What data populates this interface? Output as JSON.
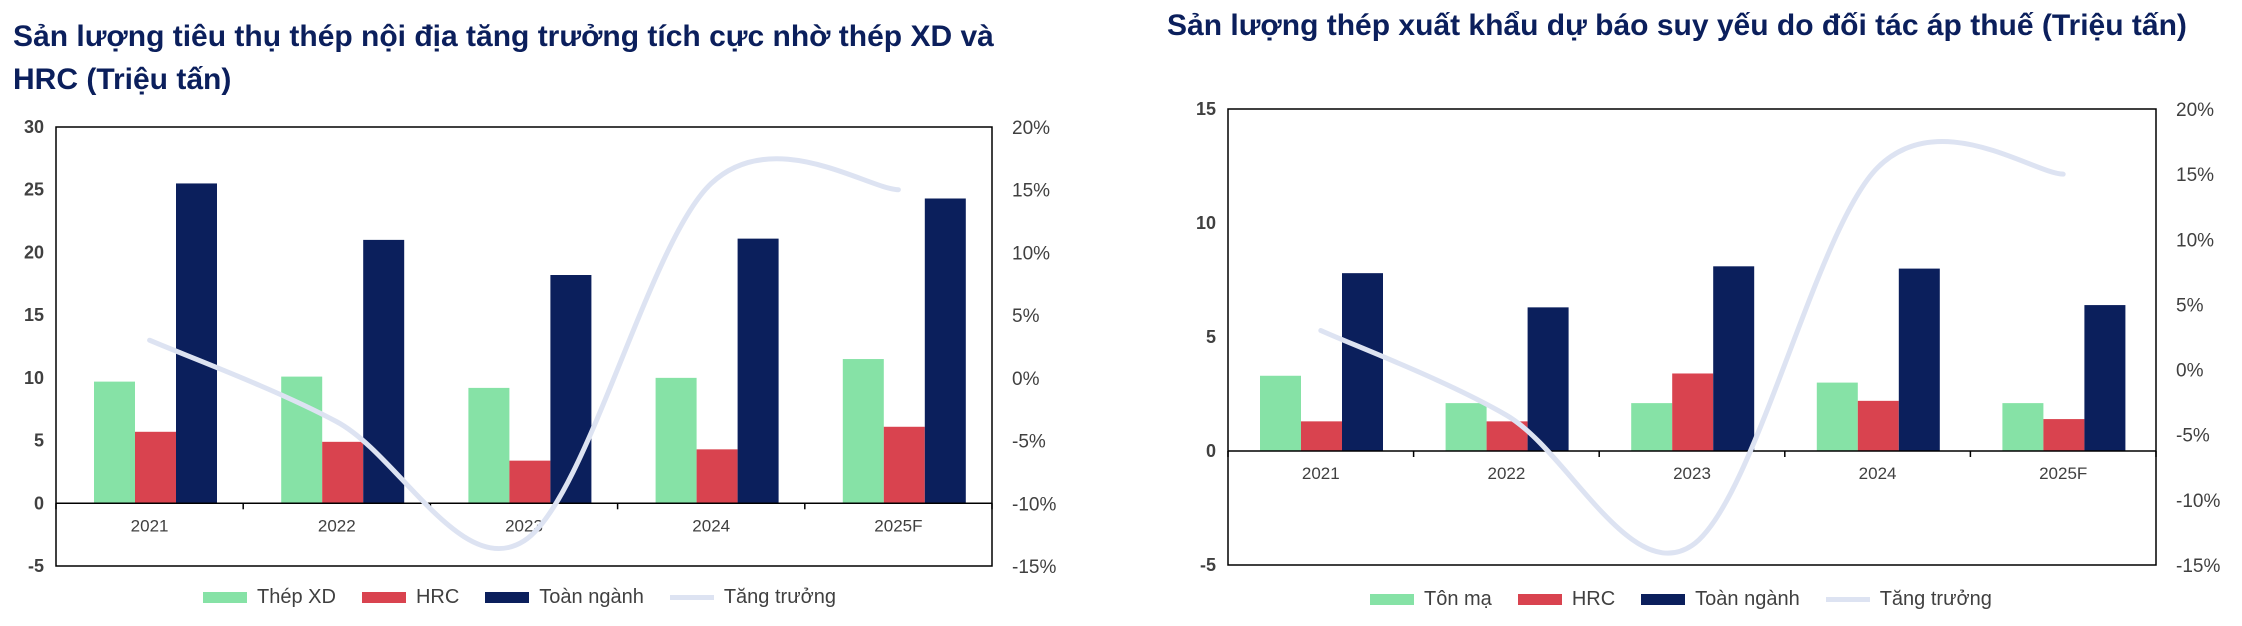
{
  "chart_data": [
    {
      "type": "bar",
      "title": "Sản lượng tiêu thụ thép nội địa tăng trưởng tích cực nhờ thép XD và HRC (Triệu tấn)",
      "categories": [
        "2021",
        "2022",
        "2023",
        "2024",
        "2025F"
      ],
      "series": [
        {
          "name": "Thép XD",
          "type": "bar",
          "axis": "left",
          "color": "#86e2a6",
          "values": [
            9.7,
            10.1,
            9.2,
            10.0,
            11.5
          ]
        },
        {
          "name": "HRC",
          "type": "bar",
          "axis": "left",
          "color": "#d9434f",
          "values": [
            5.7,
            4.9,
            3.4,
            4.3,
            6.1
          ]
        },
        {
          "name": "Toàn ngành",
          "type": "bar",
          "axis": "left",
          "color": "#0b1f5c",
          "values": [
            25.5,
            21.0,
            18.2,
            21.1,
            24.3
          ]
        },
        {
          "name": "Tăng trưởng",
          "type": "line",
          "axis": "right",
          "color": "#dde3f2",
          "values": [
            3.0,
            -3.5,
            -13.0,
            15.5,
            15.0
          ]
        }
      ],
      "y_left": {
        "lim": [
          -5,
          30
        ],
        "ticks": [
          "30",
          "25",
          "20",
          "15",
          "10",
          "5",
          "0",
          "-5"
        ]
      },
      "y_right": {
        "lim": [
          -15,
          20
        ],
        "ticks": [
          "20%",
          "15%",
          "10%",
          "5%",
          "0%",
          "-5%",
          "-10%",
          "-15%"
        ]
      },
      "legend": "bottom",
      "grid": false
    },
    {
      "type": "bar",
      "title": "Sản lượng thép xuất khẩu dự báo suy yếu do đối tác áp thuế (Triệu tấn)",
      "categories": [
        "2021",
        "2022",
        "2023",
        "2024",
        "2025F"
      ],
      "series": [
        {
          "name": "Tôn mạ",
          "type": "bar",
          "axis": "left",
          "color": "#86e2a6",
          "values": [
            3.3,
            2.1,
            2.1,
            3.0,
            2.1
          ]
        },
        {
          "name": "HRC",
          "type": "bar",
          "axis": "left",
          "color": "#d9434f",
          "values": [
            1.3,
            1.3,
            3.4,
            2.2,
            1.4
          ]
        },
        {
          "name": "Toàn ngành",
          "type": "bar",
          "axis": "left",
          "color": "#0b1f5c",
          "values": [
            7.8,
            6.3,
            8.1,
            8.0,
            6.4
          ]
        },
        {
          "name": "Tăng trưởng",
          "type": "line",
          "axis": "right",
          "color": "#dde3f2",
          "values": [
            3.0,
            -3.5,
            -13.5,
            15.5,
            15.0
          ]
        }
      ],
      "y_left": {
        "lim": [
          -5,
          15
        ],
        "ticks": [
          "15",
          "10",
          "5",
          "0",
          "-5"
        ]
      },
      "y_right": {
        "lim": [
          -15,
          20
        ],
        "ticks": [
          "20%",
          "15%",
          "10%",
          "5%",
          "0%",
          "-5%",
          "-10%",
          "-15%"
        ]
      },
      "legend": "bottom",
      "grid": false
    }
  ]
}
